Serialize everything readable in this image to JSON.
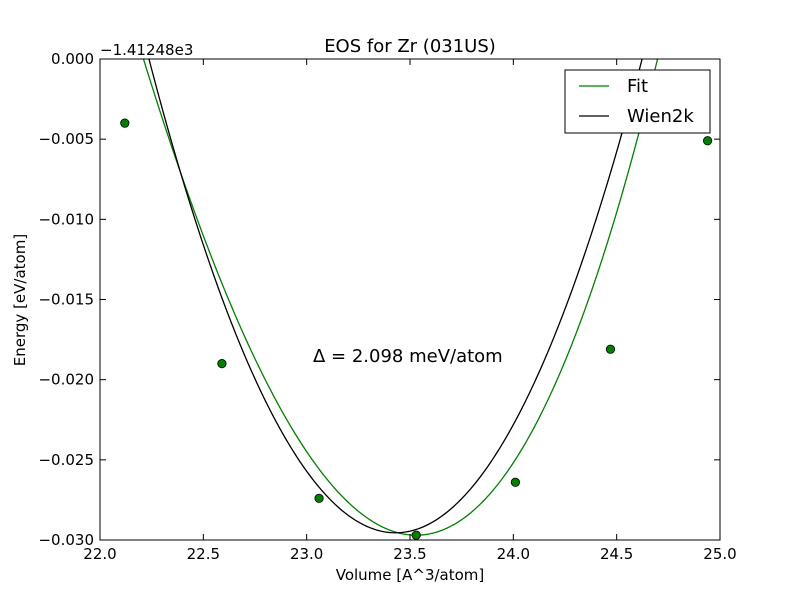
{
  "chart_data": {
    "type": "line",
    "title": "EOS for Zr (031US)",
    "xlabel": "Volume [A^3/atom]",
    "ylabel": "Energy [eV/atom]",
    "offset_label": "−1.41248e3",
    "annotation": "Δ = 2.098 meV/atom",
    "xlim": [
      22.0,
      25.0
    ],
    "ylim": [
      -0.03,
      0.0
    ],
    "x_ticks": [
      22.0,
      22.5,
      23.0,
      23.5,
      24.0,
      24.5,
      25.0
    ],
    "x_tick_labels": [
      "22.0",
      "22.5",
      "23.0",
      "23.5",
      "24.0",
      "24.5",
      "25.0"
    ],
    "y_ticks": [
      0.0,
      -0.005,
      -0.01,
      -0.015,
      -0.02,
      -0.025,
      -0.03
    ],
    "y_tick_labels": [
      "0.000",
      "−0.005",
      "−0.010",
      "−0.015",
      "−0.020",
      "−0.025",
      "−0.030"
    ],
    "grid": false,
    "legend_position": "top-right",
    "series": [
      {
        "name": "Fit",
        "color": "#008000",
        "style": "line-with-markers",
        "curve": {
          "x0": 23.53,
          "e0": -0.0297,
          "k": 0.01956,
          "c": 0.0019
        },
        "x_range": [
          22.12,
          24.95
        ],
        "points": [
          {
            "x": 22.12,
            "y": -0.004
          },
          {
            "x": 22.59,
            "y": -0.019
          },
          {
            "x": 23.06,
            "y": -0.0274
          },
          {
            "x": 23.53,
            "y": -0.0297
          },
          {
            "x": 24.01,
            "y": -0.0264
          },
          {
            "x": 24.47,
            "y": -0.0181
          },
          {
            "x": 24.94,
            "y": -0.0051
          }
        ]
      },
      {
        "name": "Wien2k",
        "color": "#000000",
        "style": "line",
        "curve": {
          "x0": 23.43,
          "e0": -0.02955,
          "k": 0.02076,
          "c": 0.0
        },
        "x_range": [
          22.13,
          25.0
        ]
      }
    ]
  }
}
